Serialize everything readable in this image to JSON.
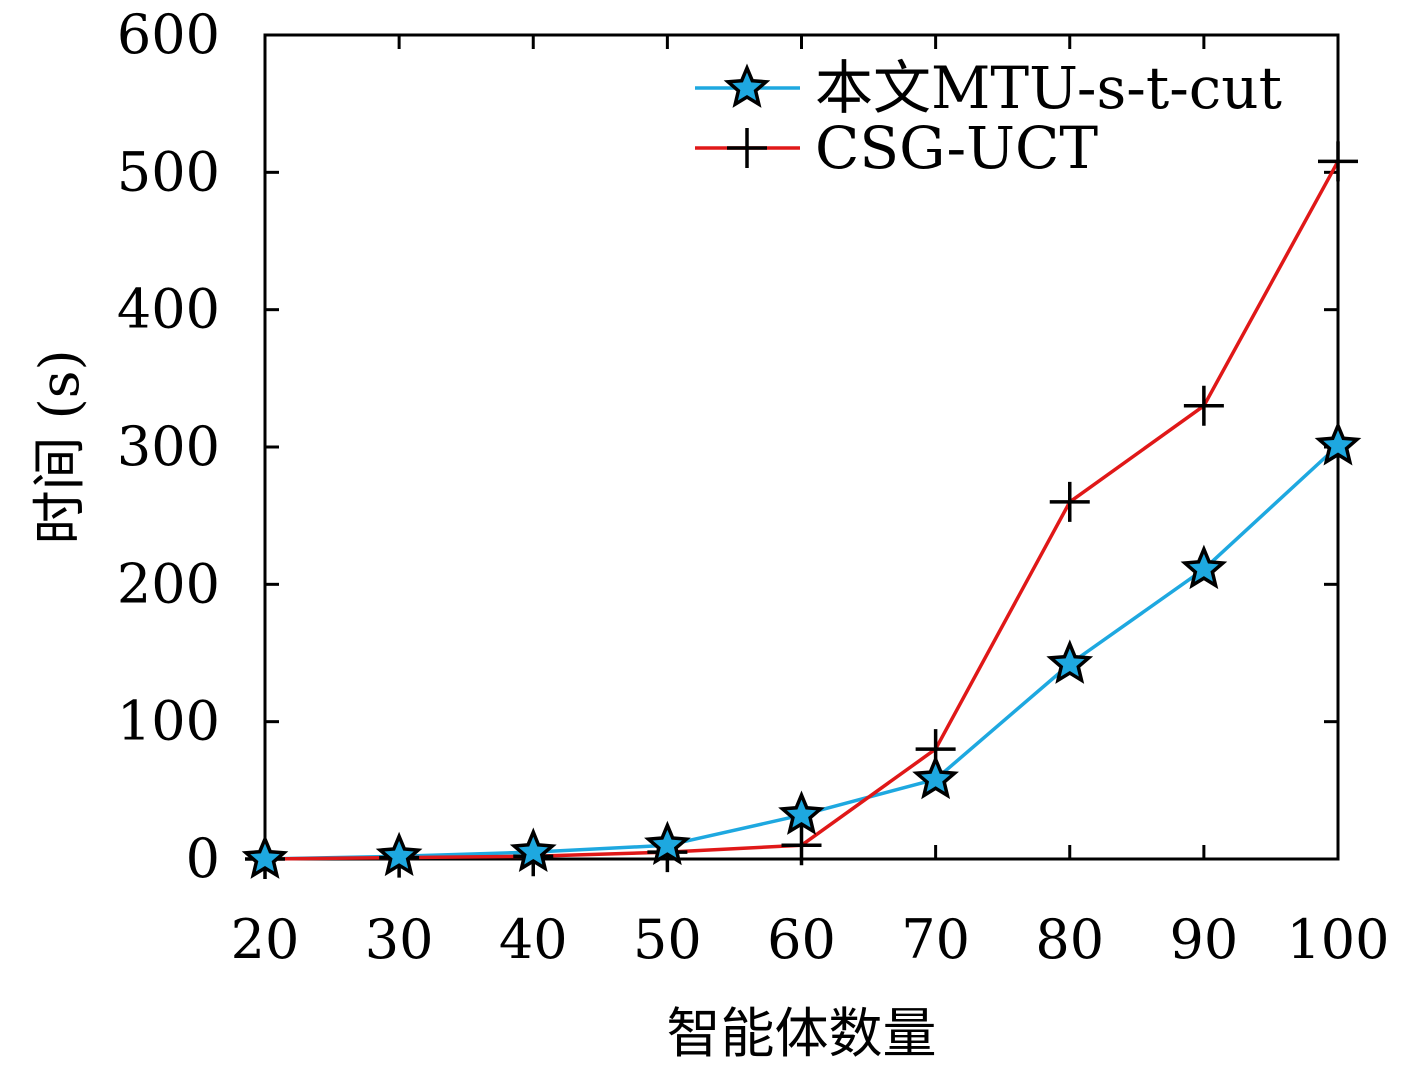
{
  "chart_data": {
    "type": "line",
    "title": "",
    "xlabel": "智能体数量",
    "ylabel": "时间 (s)",
    "x": [
      20,
      30,
      40,
      50,
      60,
      70,
      80,
      90,
      100
    ],
    "x_ticks": [
      "20",
      "30",
      "40",
      "50",
      "60",
      "70",
      "80",
      "90",
      "100"
    ],
    "y_ticks": [
      "0",
      "100",
      "200",
      "300",
      "400",
      "500",
      "600"
    ],
    "xlim": [
      20,
      100
    ],
    "ylim": [
      0,
      600
    ],
    "grid": false,
    "legend_position": "top-right",
    "series": [
      {
        "name": "本文MTU-s-t-cut",
        "color": "#1ea8e0",
        "marker": "star",
        "values": [
          0,
          2,
          5,
          10,
          32,
          58,
          142,
          211,
          301
        ]
      },
      {
        "name": "CSG-UCT",
        "color": "#e01818",
        "marker": "plus",
        "values": [
          0,
          1,
          2,
          5,
          10,
          80,
          260,
          330,
          508
        ]
      }
    ]
  }
}
